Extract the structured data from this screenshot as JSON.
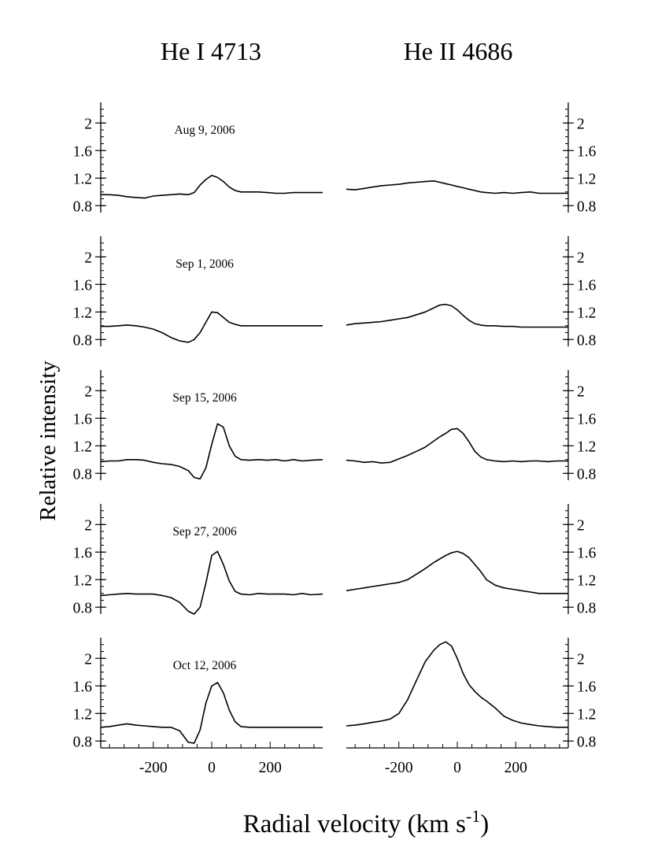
{
  "chart_data": {
    "type": "line",
    "columns": [
      {
        "title": "He I 4713"
      },
      {
        "title": "He II 4686"
      }
    ],
    "ylabel": "Relative intensity",
    "xlabel": "Radial velocity (km s",
    "xlabel_sup": "-1",
    "xlabel_close": ")",
    "xlim": [
      -380,
      380
    ],
    "ylim": [
      0.7,
      2.3
    ],
    "xticks": [
      -200,
      0,
      200
    ],
    "xtick_labels": [
      "-200",
      "0",
      "200"
    ],
    "yticks": [
      0.8,
      1.2,
      1.6,
      2.0
    ],
    "ytick_labels": [
      "0.8",
      "1.2",
      "1.6",
      "2"
    ],
    "x": [
      -380,
      -350,
      -320,
      -290,
      -260,
      -230,
      -200,
      -170,
      -140,
      -110,
      -80,
      -60,
      -40,
      -20,
      0,
      20,
      40,
      60,
      80,
      100,
      130,
      160,
      190,
      220,
      250,
      280,
      310,
      340,
      380
    ],
    "panels": [
      {
        "date": "Aug 9, 2006",
        "series": [
          {
            "name": "He I 4713",
            "values": [
              0.96,
              0.96,
              0.95,
              0.93,
              0.92,
              0.91,
              0.94,
              0.95,
              0.96,
              0.97,
              0.96,
              0.99,
              1.1,
              1.18,
              1.24,
              1.21,
              1.15,
              1.07,
              1.02,
              1.0,
              1.0,
              1.0,
              0.99,
              0.98,
              0.98,
              0.99,
              0.99,
              0.99,
              0.99
            ]
          },
          {
            "name": "He II 4686",
            "values": [
              1.04,
              1.03,
              1.05,
              1.07,
              1.09,
              1.1,
              1.11,
              1.13,
              1.14,
              1.15,
              1.16,
              1.14,
              1.12,
              1.1,
              1.08,
              1.06,
              1.04,
              1.02,
              1.0,
              0.99,
              0.98,
              0.99,
              0.98,
              0.99,
              1.0,
              0.98,
              0.98,
              0.98,
              0.98
            ]
          }
        ]
      },
      {
        "date": "Sep 1, 2006",
        "series": [
          {
            "name": "He I 4713",
            "values": [
              0.99,
              0.99,
              1.0,
              1.01,
              1.0,
              0.98,
              0.95,
              0.9,
              0.83,
              0.78,
              0.76,
              0.8,
              0.9,
              1.05,
              1.2,
              1.19,
              1.12,
              1.05,
              1.02,
              1.0,
              1.0,
              1.0,
              1.0,
              1.0,
              1.0,
              1.0,
              1.0,
              1.0,
              1.0
            ]
          },
          {
            "name": "He II 4686",
            "values": [
              1.01,
              1.03,
              1.04,
              1.05,
              1.06,
              1.08,
              1.1,
              1.12,
              1.16,
              1.2,
              1.26,
              1.3,
              1.31,
              1.29,
              1.23,
              1.15,
              1.08,
              1.03,
              1.01,
              1.0,
              1.0,
              0.99,
              0.99,
              0.98,
              0.98,
              0.98,
              0.98,
              0.98,
              0.98
            ]
          }
        ]
      },
      {
        "date": "Sep 15, 2006",
        "series": [
          {
            "name": "He I 4713",
            "values": [
              0.97,
              0.98,
              0.98,
              1.0,
              1.0,
              0.99,
              0.96,
              0.94,
              0.93,
              0.9,
              0.84,
              0.74,
              0.72,
              0.88,
              1.22,
              1.52,
              1.47,
              1.2,
              1.05,
              1.0,
              0.99,
              1.0,
              0.99,
              1.0,
              0.98,
              1.0,
              0.98,
              0.99,
              1.0
            ]
          },
          {
            "name": "He II 4686",
            "values": [
              0.99,
              0.98,
              0.96,
              0.97,
              0.95,
              0.96,
              1.01,
              1.06,
              1.12,
              1.18,
              1.27,
              1.33,
              1.38,
              1.44,
              1.45,
              1.38,
              1.26,
              1.12,
              1.04,
              1.0,
              0.98,
              0.97,
              0.98,
              0.97,
              0.98,
              0.98,
              0.97,
              0.98,
              0.98
            ]
          }
        ]
      },
      {
        "date": "Sep 27, 2006",
        "series": [
          {
            "name": "He I 4713",
            "values": [
              0.97,
              0.98,
              0.99,
              1.0,
              0.99,
              0.99,
              0.99,
              0.97,
              0.94,
              0.87,
              0.74,
              0.7,
              0.8,
              1.15,
              1.55,
              1.61,
              1.42,
              1.18,
              1.03,
              0.99,
              0.98,
              1.0,
              0.99,
              0.99,
              0.99,
              0.98,
              1.0,
              0.98,
              0.99
            ]
          },
          {
            "name": "He II 4686",
            "values": [
              1.04,
              1.06,
              1.08,
              1.1,
              1.12,
              1.14,
              1.16,
              1.2,
              1.28,
              1.36,
              1.45,
              1.5,
              1.55,
              1.59,
              1.61,
              1.58,
              1.52,
              1.42,
              1.32,
              1.2,
              1.12,
              1.08,
              1.06,
              1.04,
              1.02,
              1.0,
              1.0,
              1.0,
              1.0
            ]
          }
        ]
      },
      {
        "date": "Oct 12, 2006",
        "series": [
          {
            "name": "He I 4713",
            "values": [
              1.0,
              1.01,
              1.03,
              1.05,
              1.03,
              1.02,
              1.01,
              1.0,
              1.0,
              0.95,
              0.78,
              0.77,
              0.96,
              1.35,
              1.6,
              1.65,
              1.5,
              1.25,
              1.08,
              1.01,
              1.0,
              1.0,
              1.0,
              1.0,
              1.0,
              1.0,
              1.0,
              1.0,
              1.0
            ]
          },
          {
            "name": "He II 4686",
            "values": [
              1.02,
              1.03,
              1.05,
              1.07,
              1.09,
              1.12,
              1.2,
              1.4,
              1.68,
              1.95,
              2.12,
              2.2,
              2.24,
              2.18,
              2.0,
              1.78,
              1.62,
              1.52,
              1.44,
              1.38,
              1.28,
              1.16,
              1.1,
              1.06,
              1.04,
              1.02,
              1.01,
              1.0,
              1.0
            ]
          }
        ]
      }
    ]
  }
}
